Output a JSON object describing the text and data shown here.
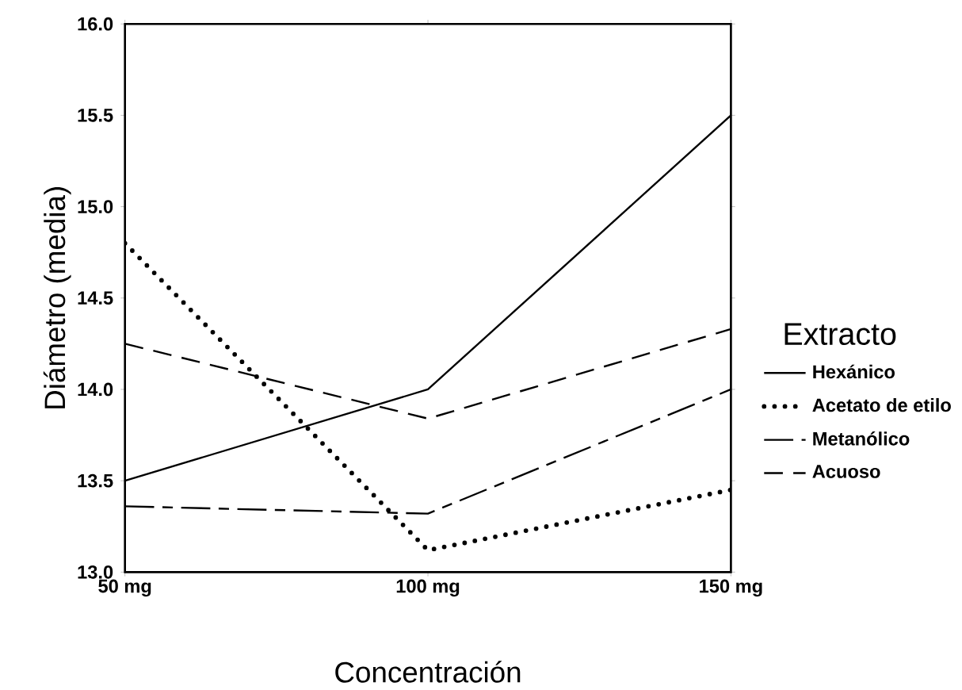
{
  "chart_data": {
    "type": "line",
    "xlabel": "Concentración",
    "ylabel": "Diámetro (media)",
    "legend_title": "Extracto",
    "categories": [
      "50 mg",
      "100 mg",
      "150 mg"
    ],
    "series": [
      {
        "name": "Hexánico",
        "color": "#000000",
        "line_style": "solid",
        "values": [
          13.5,
          14.0,
          15.5
        ]
      },
      {
        "name": "Acetato de etilo",
        "color": "#000000",
        "line_style": "dotted",
        "values": [
          14.8,
          13.12,
          13.45
        ]
      },
      {
        "name": "Metanólico",
        "color": "#000000",
        "line_style": "dashdot",
        "values": [
          13.36,
          13.32,
          14.0
        ]
      },
      {
        "name": "Acuoso",
        "color": "#000000",
        "line_style": "dashed",
        "values": [
          14.25,
          13.84,
          14.33
        ]
      }
    ],
    "ylim": [
      13,
      16
    ],
    "yticks": [
      {
        "value": 13,
        "label": "13.0"
      },
      {
        "value": 13.5,
        "label": "13.5"
      },
      {
        "value": 14,
        "label": "14.0"
      },
      {
        "value": 14.5,
        "label": "14.5"
      },
      {
        "value": 15,
        "label": "15.0"
      },
      {
        "value": 15.5,
        "label": "15.5"
      },
      {
        "value": 16,
        "label": "16.0"
      }
    ],
    "grid": false,
    "legend": "right",
    "marker": "none"
  }
}
